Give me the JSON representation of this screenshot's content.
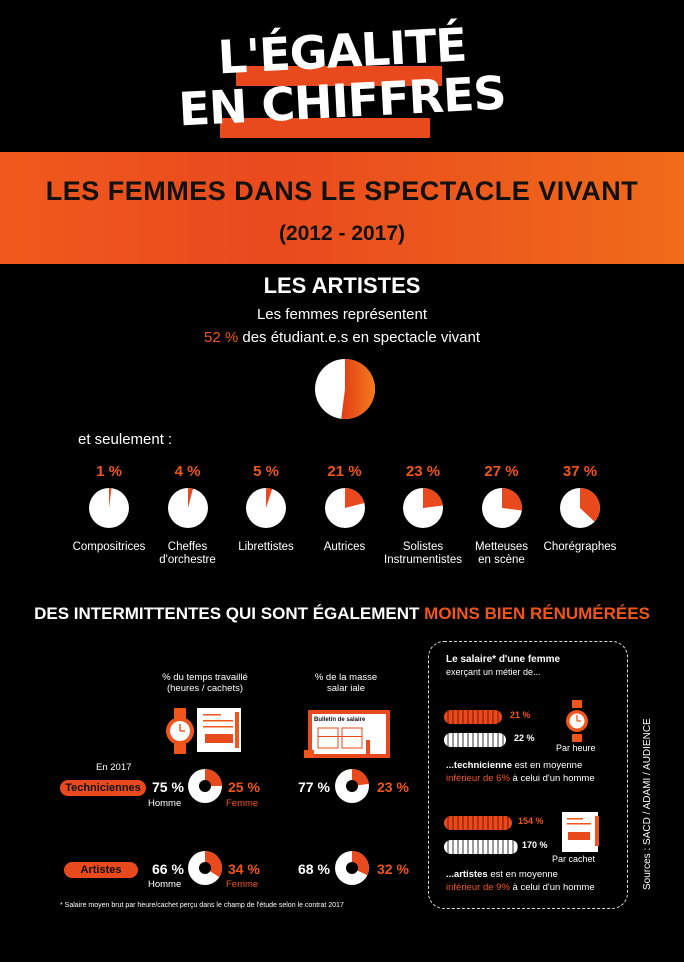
{
  "header": {
    "title_line1": "L'ÉGALITÉ",
    "title_line2": "EN CHIFFRES"
  },
  "banner": {
    "title": "LES FEMMES DANS LE SPECTACLE VIVANT",
    "years": "(2012 - 2017)"
  },
  "artists": {
    "heading": "LES ARTISTES",
    "intro_line1": "Les femmes représentent",
    "intro_pct": "52 %",
    "intro_line2": "des étudiant.e.s en spectacle vivant",
    "students_female_share": 52,
    "only_label": "et seulement :",
    "roles": [
      {
        "pct": "1 %",
        "value": 1,
        "name_line1": "Compositrices",
        "name_line2": ""
      },
      {
        "pct": "4 %",
        "value": 4,
        "name_line1": "Cheffes",
        "name_line2": "d'orchestre"
      },
      {
        "pct": "5 %",
        "value": 5,
        "name_line1": "Librettistes",
        "name_line2": ""
      },
      {
        "pct": "21 %",
        "value": 21,
        "name_line1": "Autrices",
        "name_line2": ""
      },
      {
        "pct": "23 %",
        "value": 23,
        "name_line1": "Solistes",
        "name_line2": "Instrumentistes"
      },
      {
        "pct": "27 %",
        "value": 27,
        "name_line1": "Metteuses",
        "name_line2": "en scène"
      },
      {
        "pct": "37 %",
        "value": 37,
        "name_line1": "Chorégraphes",
        "name_line2": ""
      }
    ]
  },
  "intermittents": {
    "heading_white": "DES INTERMITTENTES QUI SONT ÉGALEMENT",
    "heading_orange": "MOINS BIEN RÉNUMÉRÉES",
    "col1_label_line1": "% du temps travaillé",
    "col1_label_line2": "(heures / cachets)",
    "col2_label_line1": "% de la masse",
    "col2_label_line2": "salar   iale",
    "doc_title": "Bulletin de salaire",
    "year": "En 2017",
    "rows": [
      {
        "badge": "Techniciennes",
        "time_men": "75 %",
        "time_women": "25 %",
        "time_women_value": 25,
        "mass_men": "77 %",
        "mass_women": "23 %",
        "mass_women_value": 23
      },
      {
        "badge": "Artistes",
        "time_men": "66 %",
        "time_women": "34 %",
        "time_women_value": 34,
        "mass_men": "68 %",
        "mass_women": "32 %",
        "mass_women_value": 32
      }
    ],
    "homme": "Homme",
    "femme": "Femme",
    "footnote": "* Salaire moyen brut par heure/cachet perçu dans le champ de l'étude selon le contrat 2017"
  },
  "salary_box": {
    "title": "Le salaire* d'une femme",
    "subtitle": "exerçant un métier de...",
    "tech_women_pct": "21 %",
    "tech_men_pct": "22 %",
    "per_hour": "Par heure",
    "tech_text_bold": "...technicienne",
    "tech_text_rest": " est en moyenne",
    "tech_text_orange": "inférieur de 6%",
    "tech_text_end": " à celui d'un homme",
    "art_women_pct": "154 %",
    "art_men_pct": "170 %",
    "per_cachet": "Par cachet",
    "art_text_bold": "...artistes",
    "art_text_rest": " est en moyenne",
    "art_text_orange": "inférieur de 9%",
    "art_text_end": " à celui d'un homme"
  },
  "sources": "Sources : SACD / ADAMI / AUDIENCE",
  "colors": {
    "accent": "#f0561b",
    "background": "#000000"
  }
}
